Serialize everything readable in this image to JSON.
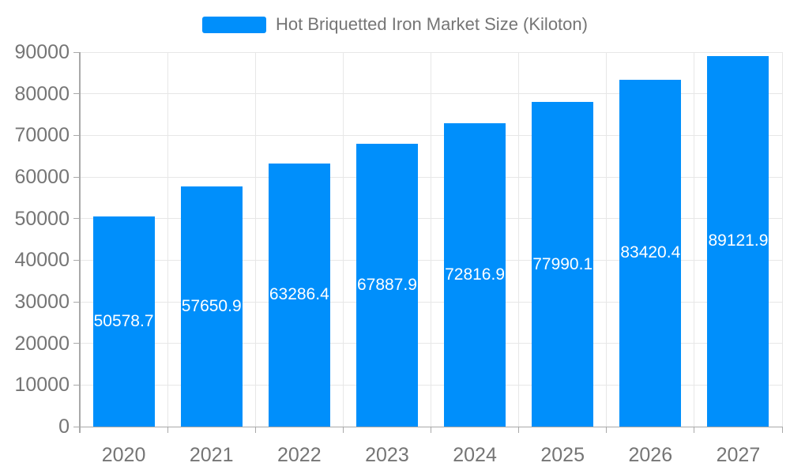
{
  "chart_data": {
    "type": "bar",
    "title": "Hot Briquetted Iron Market Size (Kiloton)",
    "categories": [
      "2020",
      "2021",
      "2022",
      "2023",
      "2024",
      "2025",
      "2026",
      "2027"
    ],
    "series": [
      {
        "name": "Hot Briquetted Iron Market Size (Kiloton)",
        "values": [
          50578.7,
          57650.9,
          63286.4,
          67887.9,
          72816.9,
          77990.1,
          83420.4,
          89121.9
        ]
      }
    ],
    "data_labels": [
      "50578.7",
      "57650.9",
      "63286.4",
      "67887.9",
      "72816.9",
      "77990.1",
      "83420.4",
      "89121.9"
    ],
    "xlabel": "",
    "ylabel": "",
    "ylim": [
      0,
      90000
    ],
    "ytick_step": 10000,
    "ytick_labels": [
      "0",
      "10000",
      "20000",
      "30000",
      "40000",
      "50000",
      "60000",
      "70000",
      "80000",
      "90000"
    ],
    "grid": true,
    "legend_position": "top",
    "colors": {
      "bar": "#008FFB",
      "data_label": "#FFFFFF",
      "axis_text": "#757575",
      "grid_line": "#E7E7E7",
      "axis_line": "#A9A9A9"
    }
  },
  "legend": {
    "label": "Hot Briquetted Iron Market Size (Kiloton)"
  }
}
